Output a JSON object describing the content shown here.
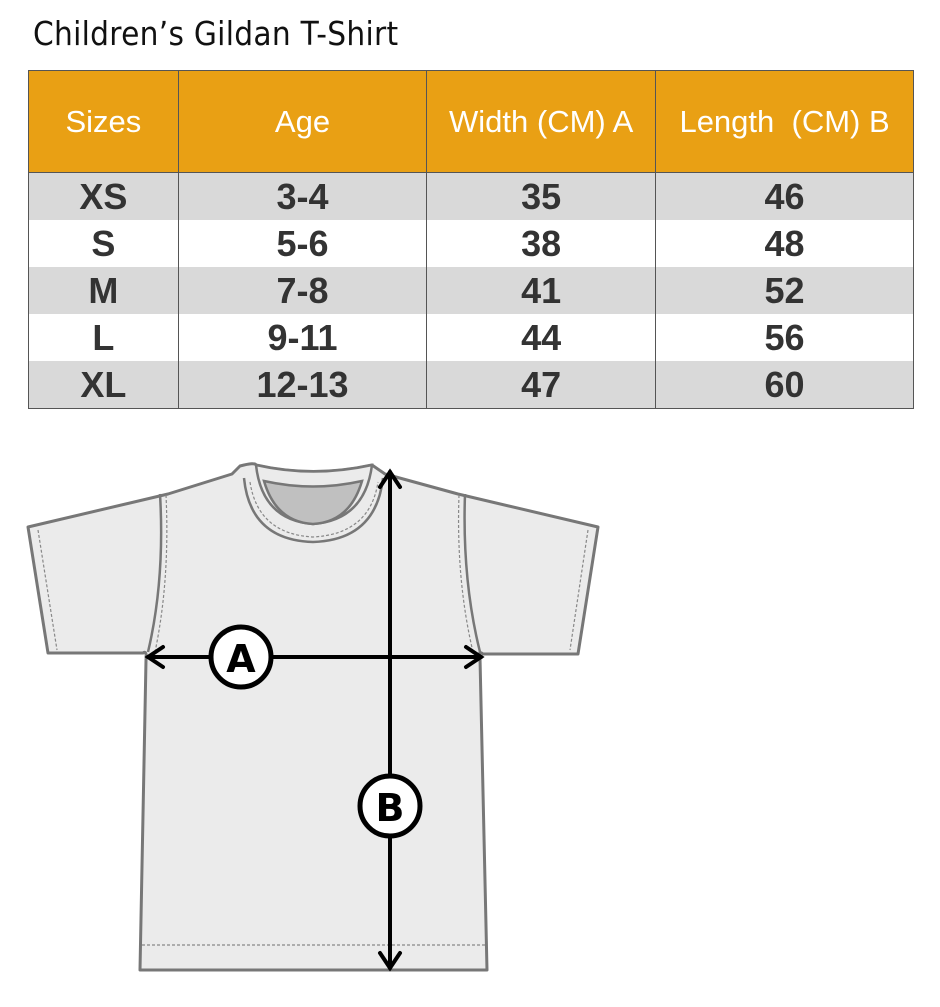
{
  "title": "Children’s Gildan T-Shirt",
  "table": {
    "headers": [
      "Sizes",
      "Age",
      "Width (CM) A",
      "Length  (CM) B"
    ],
    "rows": [
      [
        "XS",
        "3-4",
        "35",
        "46"
      ],
      [
        "S",
        "5-6",
        "38",
        "48"
      ],
      [
        "M",
        "7-8",
        "41",
        "52"
      ],
      [
        "L",
        "9-11",
        "44",
        "56"
      ],
      [
        "XL",
        "12-13",
        "47",
        "60"
      ]
    ]
  },
  "diagram": {
    "label_a": "A",
    "label_b": "B"
  },
  "colors": {
    "header_bg": "#e9a014",
    "row_alt": "#d9d9d9",
    "shirt_fill": "#ebebeb",
    "shirt_outline": "#777777"
  }
}
